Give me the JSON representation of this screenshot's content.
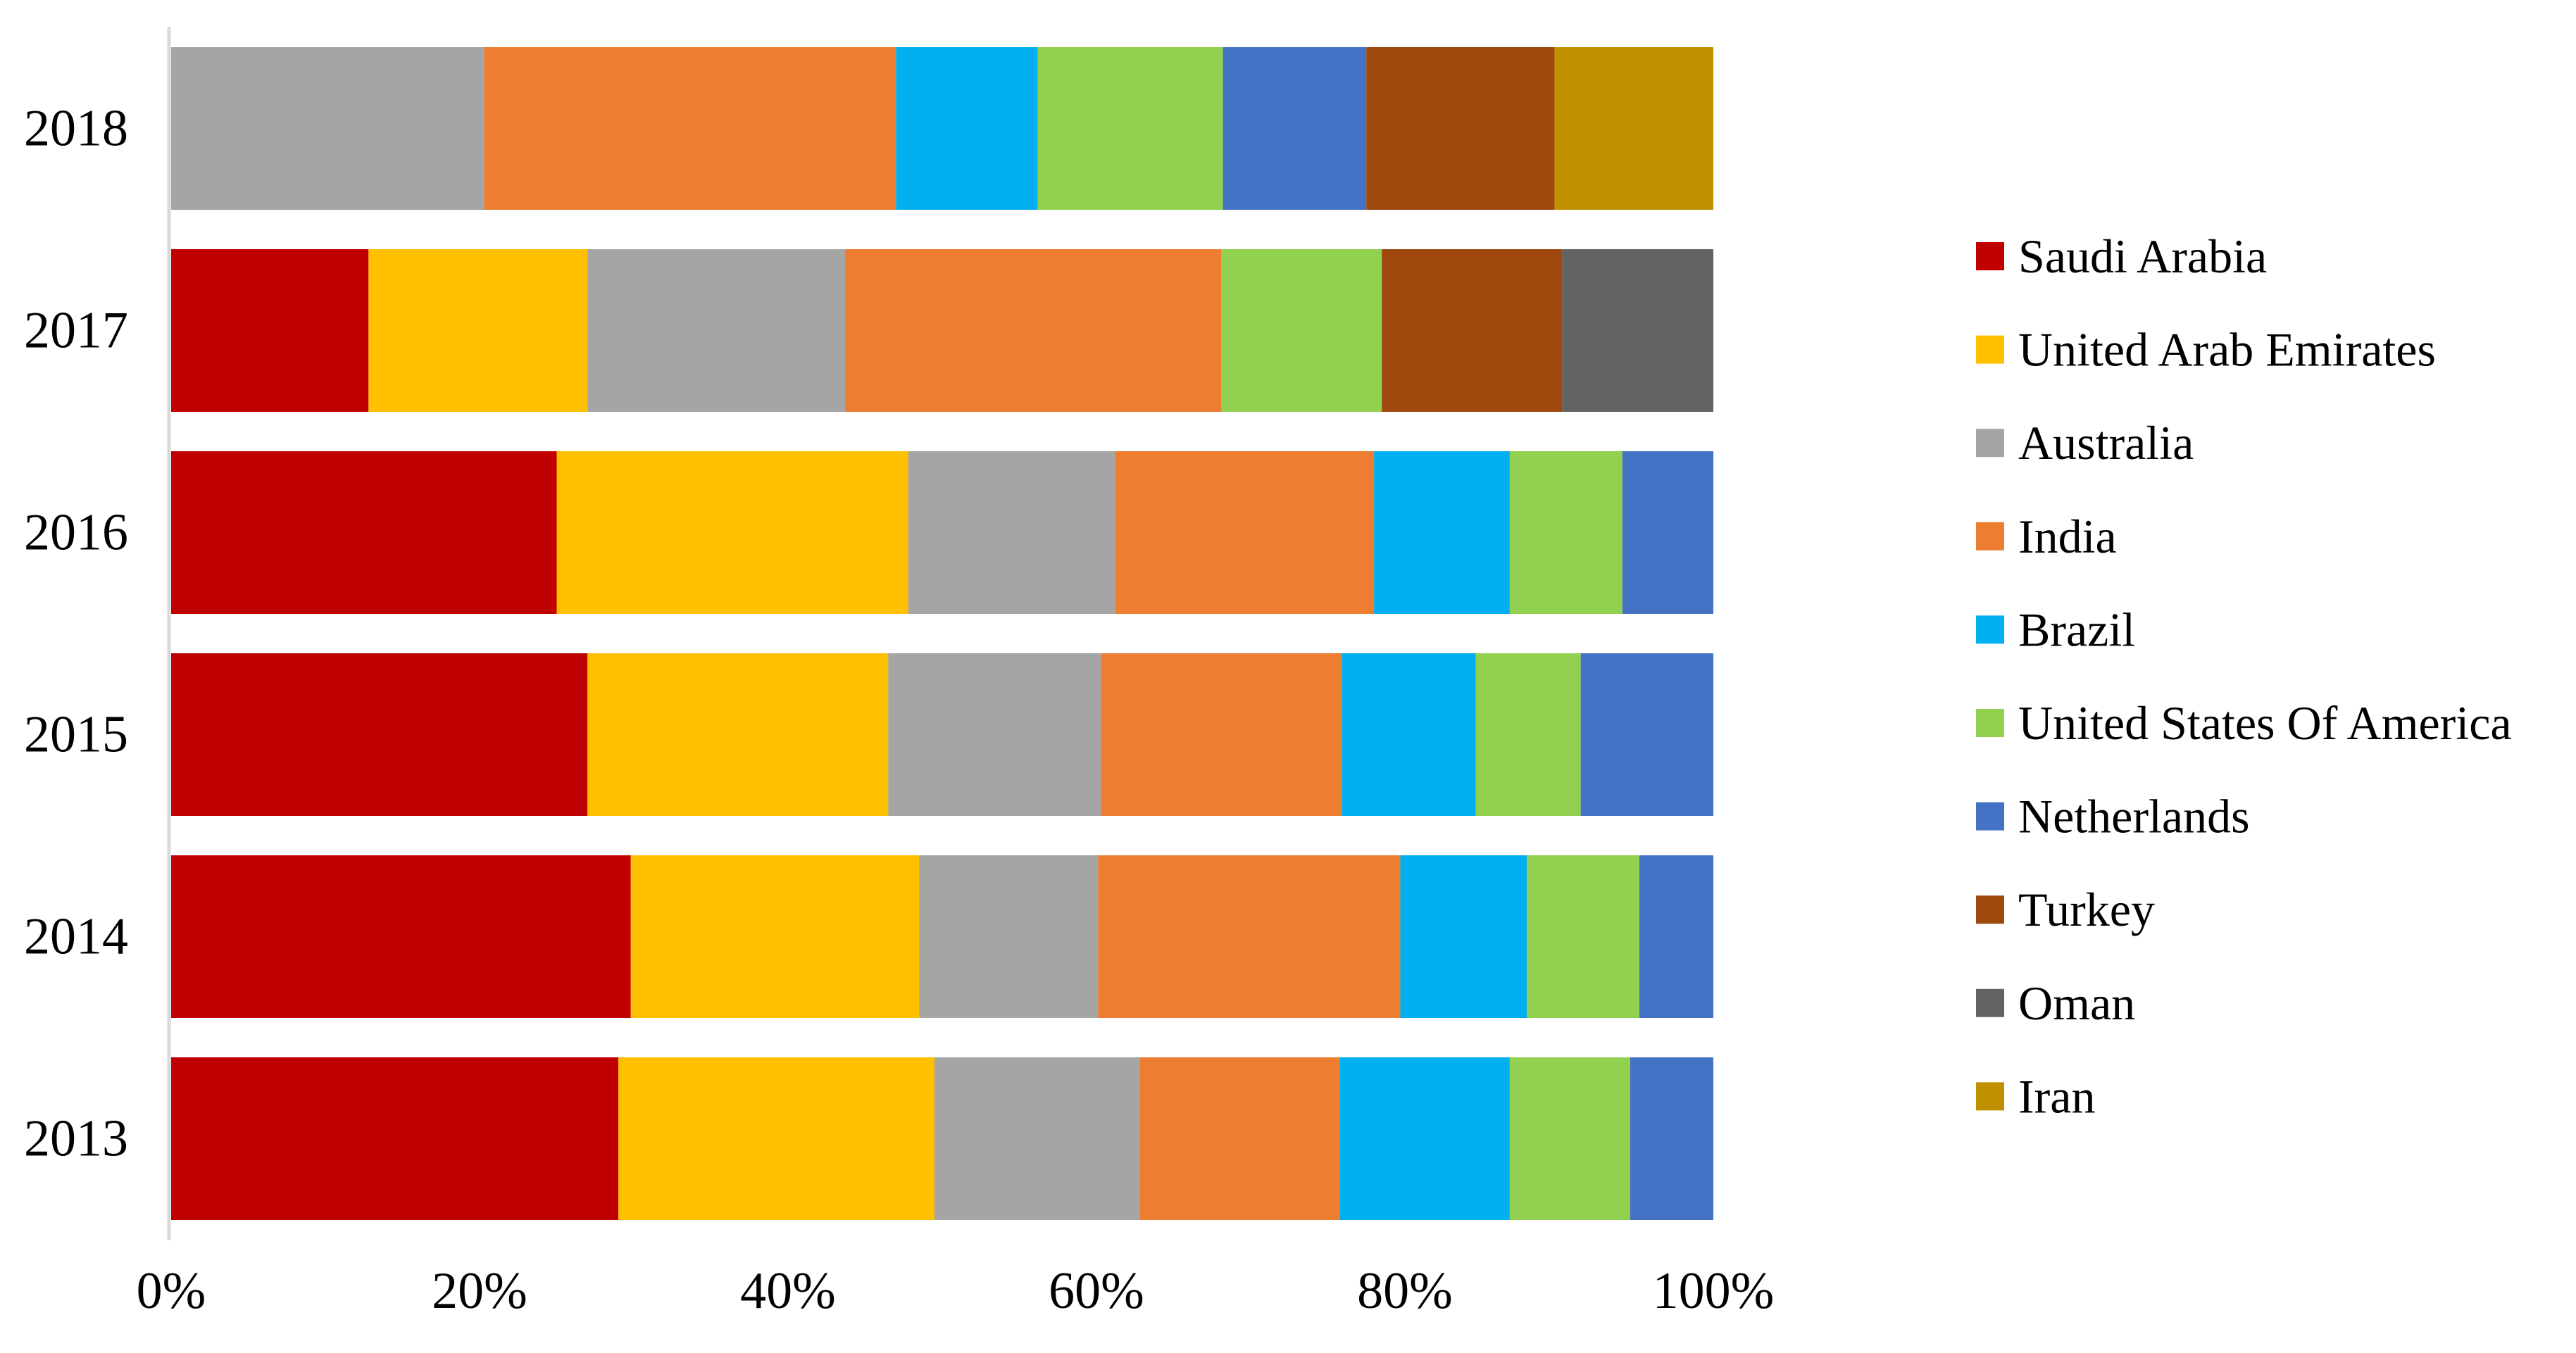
{
  "chart_data": {
    "type": "bar",
    "orientation": "horizontal",
    "stacked": "percent",
    "title": "",
    "xlabel": "",
    "ylabel": "",
    "xlim": [
      0,
      100
    ],
    "x_ticks": [
      "0%",
      "20%",
      "40%",
      "60%",
      "80%",
      "100%"
    ],
    "categories": [
      "2018",
      "2017",
      "2016",
      "2015",
      "2014",
      "2013"
    ],
    "grid": false,
    "legend_position": "right",
    "series": [
      {
        "name": "Saudi Arabia",
        "color": "#C00000",
        "values": [
          0,
          12.8,
          25.0,
          27.0,
          29.8,
          29.0
        ]
      },
      {
        "name": "United Arab Emirates",
        "color": "#FFC000",
        "values": [
          0,
          14.2,
          22.8,
          19.5,
          18.7,
          20.5
        ]
      },
      {
        "name": "Australia",
        "color": "#A5A5A5",
        "values": [
          20.3,
          16.7,
          13.4,
          13.8,
          11.6,
          13.3
        ]
      },
      {
        "name": "India",
        "color": "#ED7D31",
        "values": [
          26.7,
          24.4,
          16.8,
          15.6,
          19.6,
          13.0
        ]
      },
      {
        "name": "Brazil",
        "color": "#00B0F0",
        "values": [
          9.2,
          0,
          8.8,
          8.7,
          8.2,
          11.0
        ]
      },
      {
        "name": "United States Of America",
        "color": "#92D050",
        "values": [
          12.0,
          10.4,
          7.3,
          6.8,
          7.3,
          7.8
        ]
      },
      {
        "name": "Netherlands",
        "color": "#4472C4",
        "values": [
          9.3,
          0,
          5.9,
          8.6,
          4.8,
          5.4
        ]
      },
      {
        "name": "Turkey",
        "color": "#9E480E",
        "values": [
          12.2,
          11.7,
          0,
          0,
          0,
          0
        ]
      },
      {
        "name": "Oman",
        "color": "#636363",
        "values": [
          0,
          9.8,
          0,
          0,
          0,
          0
        ]
      },
      {
        "name": "Iran",
        "color": "#BF9000",
        "values": [
          10.3,
          0,
          0,
          0,
          0,
          0
        ]
      }
    ]
  }
}
